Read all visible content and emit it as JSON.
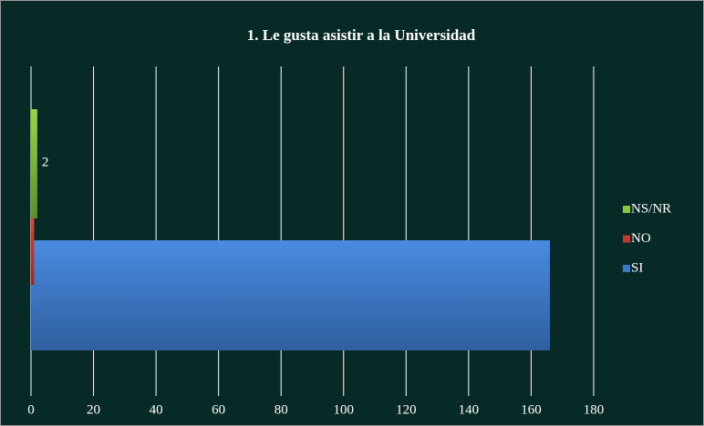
{
  "chart_data": {
    "type": "barh",
    "title": "1. Le gusta asistir a la Universidad",
    "categories": [
      null
    ],
    "series": [
      {
        "name": "SI",
        "color": "#3a78c8",
        "values": [
          166
        ]
      },
      {
        "name": "NO",
        "color": "#c0392b",
        "values": [
          1
        ]
      },
      {
        "name": "NS/NR",
        "color": "#8cc63f",
        "values": [
          2
        ],
        "labels": true
      }
    ],
    "xlim": [
      0,
      180
    ],
    "xticks": [
      0,
      20,
      40,
      60,
      80,
      100,
      120,
      140,
      160,
      180
    ],
    "grid": true,
    "legend": "right"
  }
}
